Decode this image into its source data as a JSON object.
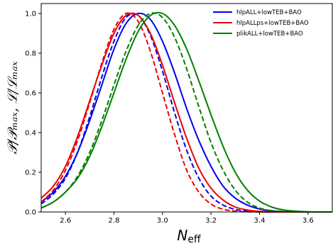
{
  "chart_data": {
    "type": "line",
    "xlabel": "N",
    "xlabel_subscript": "eff",
    "ylabel": "𝒫/𝒫ₘₐₓ, ℒ/ℒₘₐₓ",
    "xlim": [
      2.5,
      3.7
    ],
    "ylim": [
      0.0,
      1.05
    ],
    "xticks": [
      "2.6",
      "2.8",
      "3.0",
      "3.2",
      "3.4",
      "3.6"
    ],
    "xtick_values": [
      2.6,
      2.8,
      3.0,
      3.2,
      3.4,
      3.6
    ],
    "yticks": [
      "0.0",
      "0.2",
      "0.4",
      "0.6",
      "0.8",
      "1.0"
    ],
    "ytick_values": [
      0.0,
      0.2,
      0.4,
      0.6,
      0.8,
      1.0
    ],
    "grid": false,
    "legend_position": "top-right",
    "x": [
      2.5,
      2.55,
      2.6,
      2.65,
      2.7,
      2.75,
      2.8,
      2.85,
      2.9,
      2.95,
      3.0,
      3.05,
      3.1,
      3.15,
      3.2,
      3.25,
      3.3,
      3.35,
      3.4,
      3.45,
      3.5,
      3.55,
      3.6,
      3.65,
      3.7
    ],
    "series": [
      {
        "name": "hlpALL+lowTEB+BAO",
        "color": "#0000ee",
        "style": "solid",
        "values": [
          0.05,
          0.1,
          0.18,
          0.3,
          0.46,
          0.64,
          0.82,
          0.95,
          1.0,
          0.97,
          0.86,
          0.7,
          0.52,
          0.36,
          0.23,
          0.13,
          0.07,
          0.035,
          0.015,
          0.006,
          0.002,
          0.001,
          0.0,
          0.0,
          0.0
        ]
      },
      {
        "name": "hlpALL+lowTEB+BAO",
        "color": "#0000ee",
        "style": "dashed",
        "values": [
          0.04,
          0.09,
          0.17,
          0.3,
          0.48,
          0.68,
          0.86,
          0.98,
          0.99,
          0.89,
          0.71,
          0.5,
          0.31,
          0.17,
          0.08,
          0.035,
          0.013,
          0.004,
          0.001,
          0.0,
          0.0,
          0.0,
          0.0,
          0.0,
          0.0
        ]
      },
      {
        "name": "hlpALLps+lowTEB+BAO",
        "color": "#ee0000",
        "style": "solid",
        "values": [
          0.07,
          0.13,
          0.23,
          0.38,
          0.56,
          0.74,
          0.9,
          0.99,
          0.99,
          0.9,
          0.74,
          0.55,
          0.37,
          0.22,
          0.12,
          0.06,
          0.025,
          0.01,
          0.003,
          0.001,
          0.0,
          0.0,
          0.0,
          0.0,
          0.0
        ]
      },
      {
        "name": "hlpALLps+lowTEB+BAO",
        "color": "#ee0000",
        "style": "dashed",
        "values": [
          0.05,
          0.11,
          0.21,
          0.36,
          0.55,
          0.75,
          0.92,
          1.0,
          0.96,
          0.81,
          0.6,
          0.39,
          0.21,
          0.1,
          0.04,
          0.014,
          0.004,
          0.001,
          0.0,
          0.0,
          0.0,
          0.0,
          0.0,
          0.0,
          0.0
        ]
      },
      {
        "name": "plikALL+lowTEB+BAO",
        "color": "#008000",
        "style": "solid",
        "values": [
          0.02,
          0.05,
          0.1,
          0.17,
          0.28,
          0.43,
          0.6,
          0.77,
          0.91,
          0.99,
          1.0,
          0.94,
          0.82,
          0.66,
          0.49,
          0.33,
          0.2,
          0.11,
          0.055,
          0.025,
          0.01,
          0.004,
          0.001,
          0.0,
          0.0
        ]
      },
      {
        "name": "plikALL+lowTEB+BAO",
        "color": "#008000",
        "style": "dashed",
        "values": [
          0.02,
          0.05,
          0.1,
          0.18,
          0.3,
          0.46,
          0.64,
          0.81,
          0.94,
          1.0,
          0.98,
          0.88,
          0.72,
          0.53,
          0.35,
          0.21,
          0.11,
          0.05,
          0.02,
          0.007,
          0.002,
          0.0,
          0.0,
          0.0,
          0.0
        ]
      }
    ],
    "legend": [
      "hlpALL+lowTEB+BAO",
      "hlpALLps+lowTEB+BAO",
      "plikALL+lowTEB+BAO"
    ],
    "legend_colors": [
      "#0000ee",
      "#ee0000",
      "#008000"
    ]
  }
}
